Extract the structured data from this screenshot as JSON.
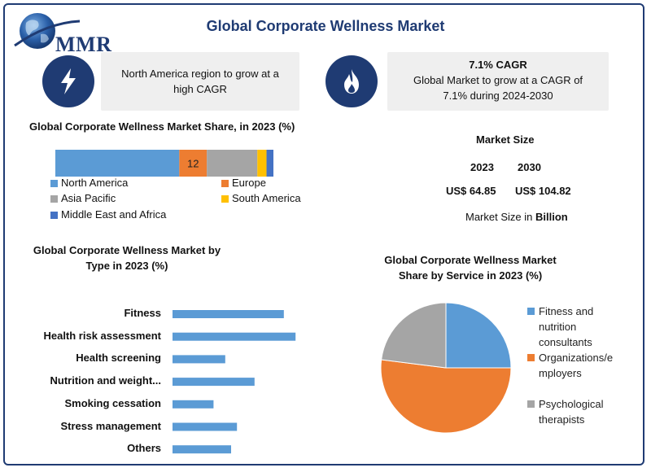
{
  "header": {
    "logo_text": "MMR",
    "title": "Global Corporate  Wellness Market"
  },
  "info_boxes": [
    {
      "icon": "lightning-icon",
      "text": "North America region to grow at a high CAGR"
    },
    {
      "icon": "flame-icon",
      "heading": "7.1% CAGR",
      "text": "Global Market to grow at a CAGR of 7.1% during 2024-2030"
    }
  ],
  "market_size": {
    "title": "Market Size",
    "year1": "2023",
    "year2": "2030",
    "value1": "US$ 64.85",
    "value2": "US$ 104.82",
    "note_prefix": "Market Size in ",
    "note_unit": "Billion"
  },
  "colors": {
    "north_america": "#5b9bd5",
    "europe": "#ed7d31",
    "asia_pacific": "#a5a5a5",
    "south_america": "#ffc000",
    "mea": "#4472c4",
    "brand": "#1f3b73"
  },
  "chart_data": [
    {
      "type": "bar",
      "orientation": "horizontal-stacked",
      "title": "Global Corporate Wellness Market Share, in 2023 (%)",
      "categories": [
        "2023"
      ],
      "series": [
        {
          "name": "North America",
          "values": [
            54
          ],
          "color": "#5b9bd5"
        },
        {
          "name": "Europe",
          "values": [
            12
          ],
          "color": "#ed7d31",
          "data_label": "12"
        },
        {
          "name": "Asia Pacific",
          "values": [
            22
          ],
          "color": "#a5a5a5"
        },
        {
          "name": "South America",
          "values": [
            4
          ],
          "color": "#ffc000"
        },
        {
          "name": "Middle East and Africa",
          "values": [
            3
          ],
          "color": "#4472c4"
        }
      ],
      "legend": "bottom"
    },
    {
      "type": "bar",
      "orientation": "horizontal",
      "title_line1": "Global Corporate Wellness Market by",
      "title_line2": "Type in 2023  (%)",
      "categories": [
        "Fitness",
        "Health risk assessment",
        "Health screening",
        "Nutrition and weight...",
        "Smoking cessation",
        "Stress management",
        "Others"
      ],
      "values": [
        19,
        21,
        9,
        14,
        7,
        11,
        10
      ],
      "color": "#5b9bd5",
      "xlim": [
        0,
        25
      ],
      "grid": false
    },
    {
      "type": "pie",
      "title_line1": "Global Corporate Wellness Market",
      "title_line2": "Share by Service in 2023 (%)",
      "series": [
        {
          "name_lines": [
            "Fitness and",
            "nutrition",
            "consultants"
          ],
          "value": 25,
          "color": "#5b9bd5"
        },
        {
          "name_lines": [
            "Organizations/e",
            "mployers"
          ],
          "value": 52,
          "color": "#ed7d31"
        },
        {
          "name_lines": [
            "Psychological",
            "therapists"
          ],
          "value": 23,
          "color": "#a5a5a5"
        }
      ],
      "legend": "right"
    }
  ]
}
